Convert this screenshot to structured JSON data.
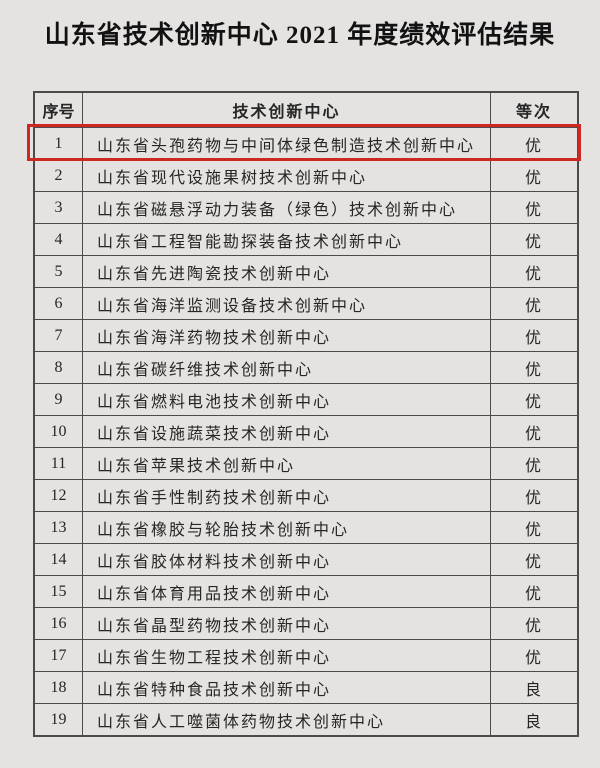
{
  "page": {
    "title": "山东省技术创新中心 2021 年度绩效评估结果"
  },
  "colors": {
    "background": "#e5e3e1",
    "table_border": "#4b4b4b",
    "text": "#262626",
    "highlight": "#cf2721"
  },
  "table": {
    "headers": [
      "序号",
      "技术创新中心",
      "等次"
    ],
    "rows": [
      {
        "no": "1",
        "name": "山东省头孢药物与中间体绿色制造技术创新中心",
        "grade": "优",
        "highlighted": true
      },
      {
        "no": "2",
        "name": "山东省现代设施果树技术创新中心",
        "grade": "优",
        "highlighted": false
      },
      {
        "no": "3",
        "name": "山东省磁悬浮动力装备（绿色）技术创新中心",
        "grade": "优",
        "highlighted": false
      },
      {
        "no": "4",
        "name": "山东省工程智能勘探装备技术创新中心",
        "grade": "优",
        "highlighted": false
      },
      {
        "no": "5",
        "name": "山东省先进陶瓷技术创新中心",
        "grade": "优",
        "highlighted": false
      },
      {
        "no": "6",
        "name": "山东省海洋监测设备技术创新中心",
        "grade": "优",
        "highlighted": false
      },
      {
        "no": "7",
        "name": "山东省海洋药物技术创新中心",
        "grade": "优",
        "highlighted": false
      },
      {
        "no": "8",
        "name": "山东省碳纤维技术创新中心",
        "grade": "优",
        "highlighted": false
      },
      {
        "no": "9",
        "name": "山东省燃料电池技术创新中心",
        "grade": "优",
        "highlighted": false
      },
      {
        "no": "10",
        "name": "山东省设施蔬菜技术创新中心",
        "grade": "优",
        "highlighted": false
      },
      {
        "no": "11",
        "name": "山东省苹果技术创新中心",
        "grade": "优",
        "highlighted": false
      },
      {
        "no": "12",
        "name": "山东省手性制药技术创新中心",
        "grade": "优",
        "highlighted": false
      },
      {
        "no": "13",
        "name": "山东省橡胶与轮胎技术创新中心",
        "grade": "优",
        "highlighted": false
      },
      {
        "no": "14",
        "name": "山东省胶体材料技术创新中心",
        "grade": "优",
        "highlighted": false
      },
      {
        "no": "15",
        "name": "山东省体育用品技术创新中心",
        "grade": "优",
        "highlighted": false
      },
      {
        "no": "16",
        "name": "山东省晶型药物技术创新中心",
        "grade": "优",
        "highlighted": false
      },
      {
        "no": "17",
        "name": "山东省生物工程技术创新中心",
        "grade": "优",
        "highlighted": false
      },
      {
        "no": "18",
        "name": "山东省特种食品技术创新中心",
        "grade": "良",
        "highlighted": false
      },
      {
        "no": "19",
        "name": "山东省人工噬菌体药物技术创新中心",
        "grade": "良",
        "highlighted": false
      }
    ]
  }
}
